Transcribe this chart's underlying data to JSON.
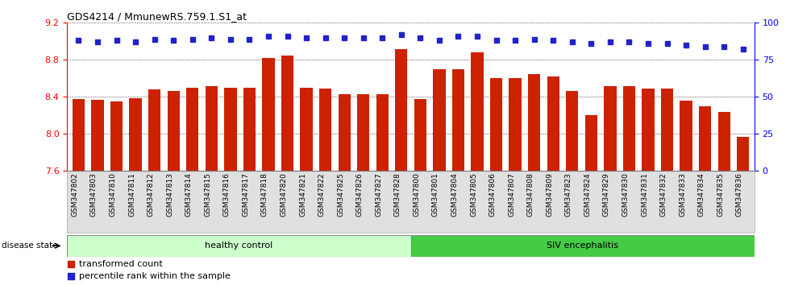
{
  "title": "GDS4214 / MmunewRS.759.1.S1_at",
  "samples": [
    "GSM347802",
    "GSM347803",
    "GSM347810",
    "GSM347811",
    "GSM347812",
    "GSM347813",
    "GSM347814",
    "GSM347815",
    "GSM347816",
    "GSM347817",
    "GSM347818",
    "GSM347820",
    "GSM347821",
    "GSM347822",
    "GSM347825",
    "GSM347826",
    "GSM347827",
    "GSM347828",
    "GSM347800",
    "GSM347801",
    "GSM347804",
    "GSM347805",
    "GSM347806",
    "GSM347807",
    "GSM347808",
    "GSM347809",
    "GSM347823",
    "GSM347824",
    "GSM347829",
    "GSM347830",
    "GSM347831",
    "GSM347832",
    "GSM347833",
    "GSM347834",
    "GSM347835",
    "GSM347836"
  ],
  "bar_values": [
    8.38,
    8.37,
    8.35,
    8.39,
    8.48,
    8.46,
    8.5,
    8.52,
    8.5,
    8.5,
    8.82,
    8.85,
    8.5,
    8.49,
    8.43,
    8.43,
    8.43,
    8.92,
    8.38,
    8.7,
    8.7,
    8.88,
    8.6,
    8.6,
    8.65,
    8.62,
    8.46,
    8.2,
    8.52,
    8.52,
    8.49,
    8.49,
    8.36,
    8.3,
    8.24,
    7.97
  ],
  "percentile_values": [
    88,
    87,
    88,
    87,
    89,
    88,
    89,
    90,
    89,
    89,
    91,
    91,
    90,
    90,
    90,
    90,
    90,
    92,
    90,
    88,
    91,
    91,
    88,
    88,
    89,
    88,
    87,
    86,
    87,
    87,
    86,
    86,
    85,
    84,
    84,
    82
  ],
  "ylim_left": [
    7.6,
    9.2
  ],
  "ylim_right": [
    0,
    100
  ],
  "yticks_left": [
    7.6,
    8.0,
    8.4,
    8.8,
    9.2
  ],
  "yticks_right": [
    0,
    25,
    50,
    75,
    100
  ],
  "ybaseline": 7.6,
  "bar_color": "#cc2200",
  "dot_color": "#2222cc",
  "healthy_count": 18,
  "healthy_label": "healthy control",
  "siv_label": "SIV encephalitis",
  "healthy_color": "#ccffcc",
  "siv_color": "#44cc44",
  "disease_state_label": "disease state",
  "legend_bar_label": "transformed count",
  "legend_dot_label": "percentile rank within the sample",
  "background_color": "#ffffff",
  "xtick_bg": "#e0e0e0"
}
